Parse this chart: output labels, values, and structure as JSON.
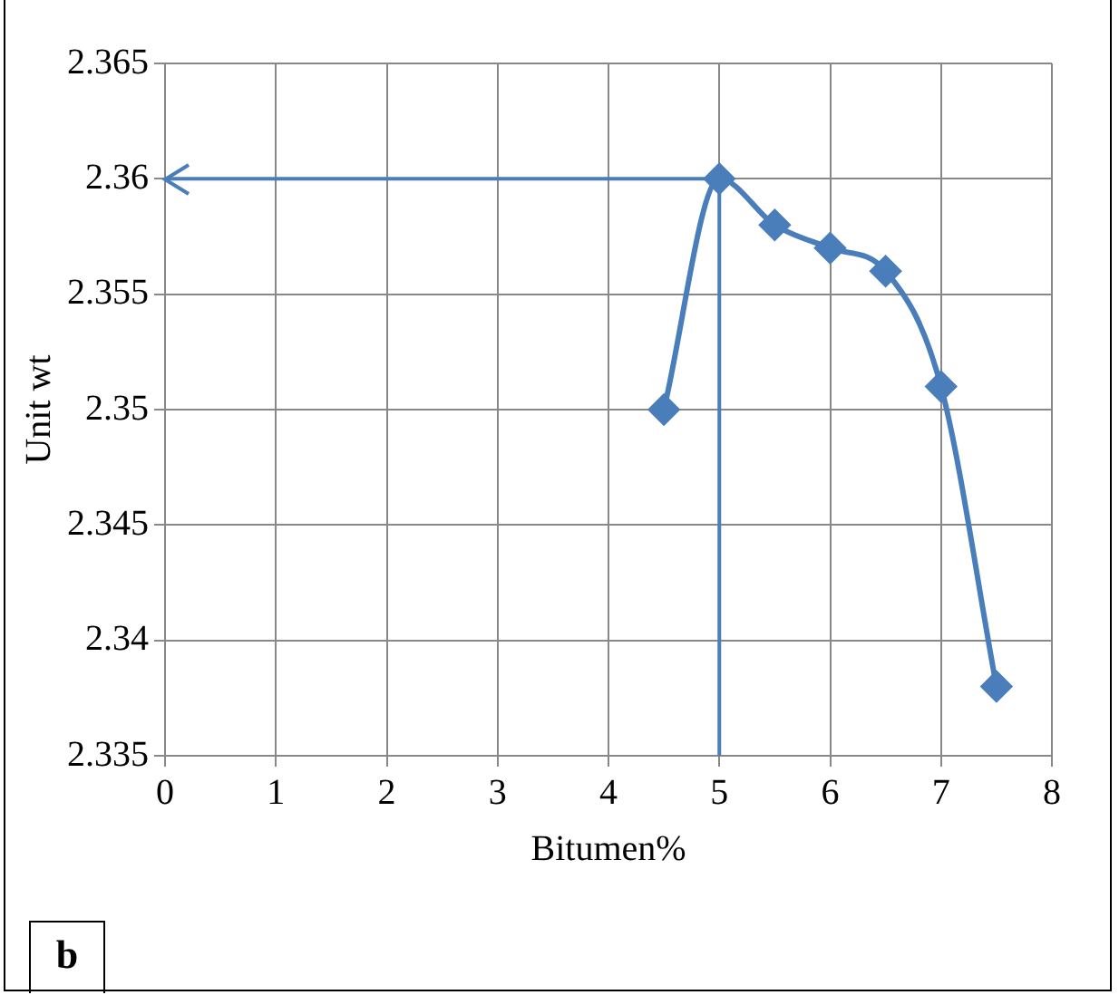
{
  "chart_data": {
    "type": "line",
    "xlabel": "Bitumen%",
    "ylabel": "Unit wt",
    "x": [
      4.5,
      5,
      5.5,
      6,
      6.5,
      7,
      7.5
    ],
    "series": [
      {
        "color": "#4a7ebb",
        "values": [
          2.35,
          2.36,
          2.358,
          2.357,
          2.356,
          2.351,
          2.338
        ]
      }
    ],
    "xlim": [
      0,
      8
    ],
    "xticks": [
      0,
      1,
      2,
      3,
      4,
      5,
      6,
      7,
      8
    ],
    "ylim": [
      2.335,
      2.365
    ],
    "yticks": [
      2.335,
      2.34,
      2.345,
      2.35,
      2.355,
      2.36,
      2.365
    ],
    "ref_lines": [
      {
        "axis": "y",
        "value": 2.36,
        "color": "#4a7ebb"
      },
      {
        "axis": "x",
        "value": 5,
        "color": "#4a7ebb"
      }
    ],
    "annotations": [
      "b"
    ],
    "grid": true,
    "legend": false,
    "marker": "diamond",
    "line_style": "solid"
  }
}
